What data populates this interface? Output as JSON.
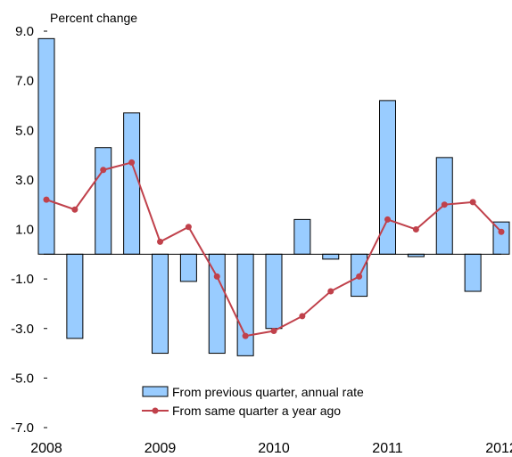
{
  "chart_data": {
    "type": "bar",
    "ylabel": "Percent change",
    "ylim": [
      -7.0,
      9.0
    ],
    "yticks": [
      "9.0",
      "7.0",
      "5.0",
      "3.0",
      "1.0",
      "-1.0",
      "-3.0",
      "-5.0",
      "-7.0"
    ],
    "ytick_values": [
      9,
      7,
      5,
      3,
      1,
      -1,
      -3,
      -5,
      -7
    ],
    "year_labels": [
      "2008",
      "2009",
      "2010",
      "2011",
      "2012"
    ],
    "year_positions": [
      0,
      4,
      8,
      12,
      16
    ],
    "x": [
      "2008Q1",
      "2008Q2",
      "2008Q3",
      "2008Q4",
      "2009Q1",
      "2009Q2",
      "2009Q3",
      "2009Q4",
      "2010Q1",
      "2010Q2",
      "2010Q3",
      "2010Q4",
      "2011Q1",
      "2011Q2",
      "2011Q3",
      "2011Q4",
      "2012Q1"
    ],
    "series": [
      {
        "name": "From previous quarter, annual rate",
        "type": "bar",
        "color": "#99ccff",
        "values": [
          8.7,
          -3.4,
          4.3,
          5.7,
          -4.0,
          -1.1,
          -4.0,
          -4.1,
          -3.0,
          1.4,
          -0.2,
          -1.7,
          6.2,
          -0.1,
          3.9,
          -1.5,
          1.3
        ]
      },
      {
        "name": "From same quarter a year ago",
        "type": "line",
        "color": "#c0414b",
        "values": [
          2.2,
          1.8,
          3.4,
          3.7,
          0.5,
          1.1,
          -0.9,
          -3.3,
          -3.1,
          -2.5,
          -1.5,
          -0.9,
          1.4,
          1.0,
          2.0,
          2.1,
          0.9
        ]
      }
    ],
    "grid": false,
    "legend_position": "bottom-center"
  }
}
